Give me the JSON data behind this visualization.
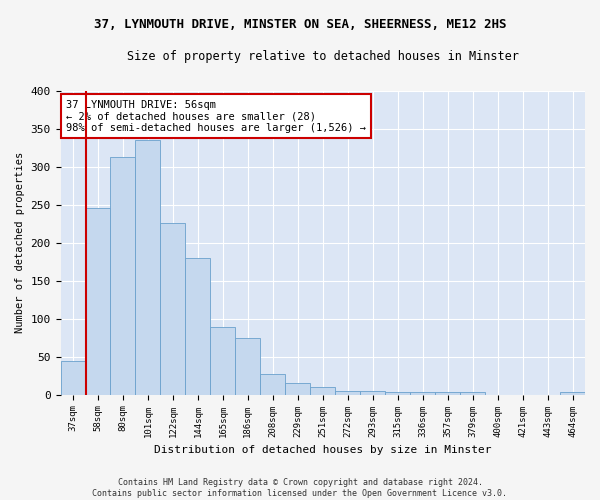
{
  "title_line1": "37, LYNMOUTH DRIVE, MINSTER ON SEA, SHEERNESS, ME12 2HS",
  "title_line2": "Size of property relative to detached houses in Minster",
  "xlabel": "Distribution of detached houses by size in Minster",
  "ylabel": "Number of detached properties",
  "bar_labels": [
    "37sqm",
    "58sqm",
    "80sqm",
    "101sqm",
    "122sqm",
    "144sqm",
    "165sqm",
    "186sqm",
    "208sqm",
    "229sqm",
    "251sqm",
    "272sqm",
    "293sqm",
    "315sqm",
    "336sqm",
    "357sqm",
    "379sqm",
    "400sqm",
    "421sqm",
    "443sqm",
    "464sqm"
  ],
  "bar_values": [
    44,
    245,
    312,
    335,
    226,
    180,
    89,
    74,
    27,
    16,
    10,
    5,
    5,
    4,
    3,
    3,
    3,
    0,
    0,
    0,
    3
  ],
  "bar_color": "#c5d8ee",
  "bar_edge_color": "#6aa0cc",
  "highlight_line_color": "#cc0000",
  "annotation_text": "37 LYNMOUTH DRIVE: 56sqm\n← 2% of detached houses are smaller (28)\n98% of semi-detached houses are larger (1,526) →",
  "annotation_box_facecolor": "#ffffff",
  "annotation_box_edgecolor": "#cc0000",
  "ylim": [
    0,
    400
  ],
  "yticks": [
    0,
    50,
    100,
    150,
    200,
    250,
    300,
    350,
    400
  ],
  "plot_bg_color": "#dce6f5",
  "grid_color": "#ffffff",
  "fig_bg_color": "#f5f5f5",
  "footnote": "Contains HM Land Registry data © Crown copyright and database right 2024.\nContains public sector information licensed under the Open Government Licence v3.0."
}
